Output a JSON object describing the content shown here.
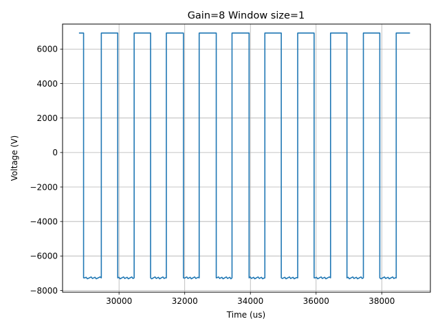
{
  "chart_data": {
    "type": "line",
    "title": "Gain=8 Window size=1",
    "xlabel": "Time (us)",
    "ylabel": "Voltage (V)",
    "xlim": [
      28280,
      39480
    ],
    "ylim": [
      -8100,
      7450
    ],
    "xticks": [
      30000,
      32000,
      34000,
      36000,
      38000
    ],
    "xtick_labels": [
      "30000",
      "32000",
      "34000",
      "36000",
      "38000"
    ],
    "yticks": [
      -8000,
      -6000,
      -4000,
      -2000,
      0,
      2000,
      4000,
      6000
    ],
    "ytick_labels": [
      "−8000",
      "−6000",
      "−4000",
      "−2000",
      "0",
      "2000",
      "4000",
      "6000"
    ],
    "grid": true,
    "series": [
      {
        "color": "#1f77b4",
        "high_value": 6930,
        "low_value": -7270,
        "x": [
          28780,
          28920,
          28920,
          29460,
          29460,
          29960,
          29960,
          30460,
          30460,
          30960,
          30960,
          31440,
          31440,
          31960,
          31960,
          32440,
          32440,
          32960,
          32960,
          33440,
          33440,
          33960,
          33960,
          34440,
          34440,
          34940,
          34940,
          35440,
          35440,
          35940,
          35940,
          36440,
          36440,
          36940,
          36940,
          37440,
          37440,
          37940,
          37940,
          38440,
          38440,
          38860
        ],
        "y": [
          6930,
          6930,
          -7270,
          -7270,
          6930,
          6930,
          -7270,
          -7270,
          6930,
          6930,
          -7270,
          -7270,
          6930,
          6930,
          -7270,
          -7270,
          6930,
          6930,
          -7270,
          -7270,
          6930,
          6930,
          -7270,
          -7270,
          6930,
          6930,
          -7270,
          -7270,
          6930,
          6930,
          -7270,
          -7270,
          6930,
          6930,
          -7270,
          -7270,
          6930,
          6930,
          -7270,
          -7270,
          6930,
          6930
        ]
      }
    ]
  }
}
